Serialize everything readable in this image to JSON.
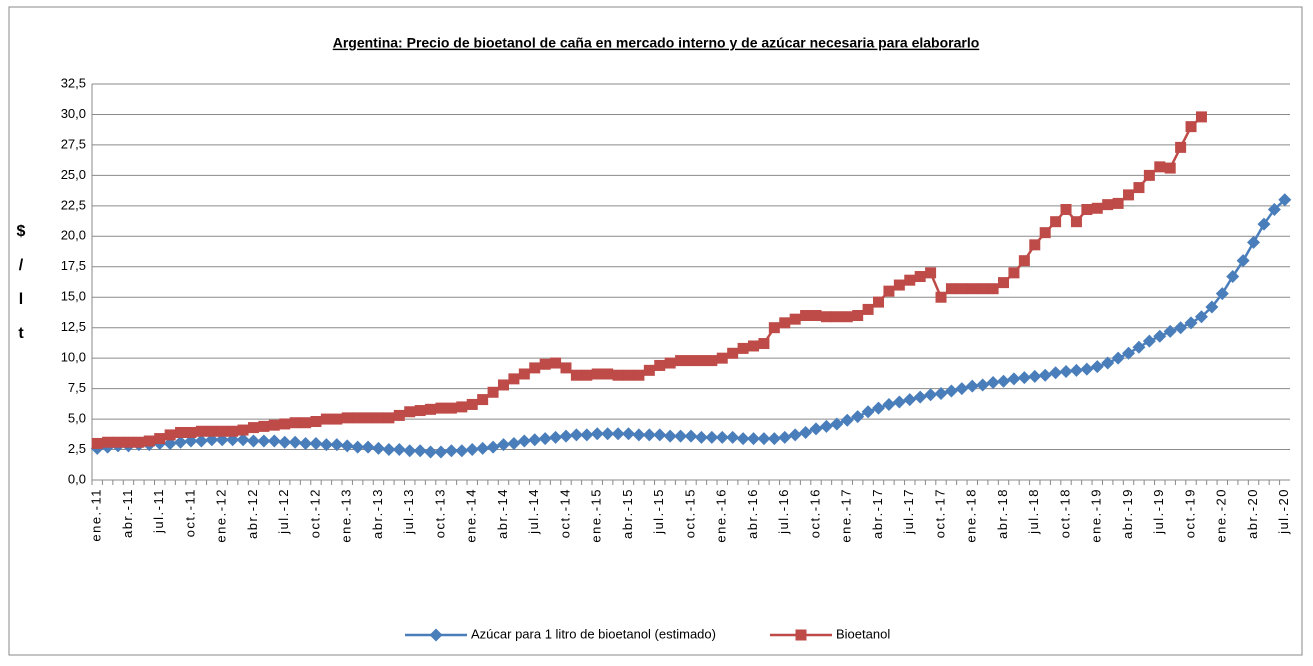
{
  "chart_data": {
    "type": "line",
    "title": "Argentina: Precio de bioetanol de caña en mercado interno y de azúcar necesaria para elaborarlo",
    "y_label": "$ / l t",
    "categories": [
      "ene.-11",
      null,
      null,
      "abr.-11",
      null,
      null,
      "jul.-11",
      null,
      null,
      "oct.-11",
      null,
      null,
      "ene.-12",
      null,
      null,
      "abr.-12",
      null,
      null,
      "jul.-12",
      null,
      null,
      "oct.-12",
      null,
      null,
      "ene.-13",
      null,
      null,
      "abr.-13",
      null,
      null,
      "jul.-13",
      null,
      null,
      "oct.-13",
      null,
      null,
      "ene.-14",
      null,
      null,
      "abr.-14",
      null,
      null,
      "jul.-14",
      null,
      null,
      "oct.-14",
      null,
      null,
      "ene.-15",
      null,
      null,
      "abr.-15",
      null,
      null,
      "jul.-15",
      null,
      null,
      "oct.-15",
      null,
      null,
      "ene.-16",
      null,
      null,
      "abr.-16",
      null,
      null,
      "jul.-16",
      null,
      null,
      "oct.-16",
      null,
      null,
      "ene.-17",
      null,
      null,
      "abr.-17",
      null,
      null,
      "jul.-17",
      null,
      null,
      "oct.-17",
      null,
      null,
      "ene.-18",
      null,
      null,
      "abr.-18",
      null,
      null,
      "jul.-18",
      null,
      null,
      "oct.-18",
      null,
      null,
      "ene.-19",
      null,
      null,
      "abr.-19",
      null,
      null,
      "jul.-19",
      null,
      null,
      "oct.-19",
      null,
      null,
      "ene.-20",
      null,
      null,
      "abr.-20",
      null,
      null,
      "jul.-20"
    ],
    "series": [
      {
        "name": "Azúcar para 1 litro de bioetanol (estimado)",
        "color": "#4a7ebb",
        "marker": "diamond",
        "values": [
          2.6,
          2.7,
          2.8,
          2.8,
          2.9,
          2.9,
          3.0,
          3.0,
          3.1,
          3.2,
          3.2,
          3.3,
          3.3,
          3.3,
          3.3,
          3.2,
          3.2,
          3.2,
          3.1,
          3.1,
          3.0,
          3.0,
          2.9,
          2.9,
          2.8,
          2.7,
          2.7,
          2.6,
          2.5,
          2.5,
          2.4,
          2.4,
          2.3,
          2.3,
          2.4,
          2.4,
          2.5,
          2.6,
          2.7,
          2.9,
          3.0,
          3.2,
          3.3,
          3.4,
          3.5,
          3.6,
          3.7,
          3.7,
          3.8,
          3.8,
          3.8,
          3.8,
          3.7,
          3.7,
          3.7,
          3.6,
          3.6,
          3.6,
          3.5,
          3.5,
          3.5,
          3.5,
          3.4,
          3.4,
          3.4,
          3.4,
          3.5,
          3.7,
          3.9,
          4.2,
          4.4,
          4.6,
          4.9,
          5.2,
          5.6,
          5.9,
          6.2,
          6.4,
          6.6,
          6.8,
          7.0,
          7.1,
          7.3,
          7.5,
          7.7,
          7.8,
          8.0,
          8.1,
          8.3,
          8.4,
          8.5,
          8.6,
          8.8,
          8.9,
          9.0,
          9.1,
          9.3,
          9.6,
          10.0,
          10.4,
          10.9,
          11.4,
          11.8,
          12.2,
          12.5,
          12.9,
          13.4,
          14.2,
          15.3,
          16.7,
          18.0,
          19.5,
          21.0,
          22.2,
          23.0
        ]
      },
      {
        "name": "Bioetanol",
        "color": "#be4b48",
        "marker": "square",
        "values": [
          3.0,
          3.1,
          3.1,
          3.1,
          3.1,
          3.2,
          3.4,
          3.7,
          3.9,
          3.9,
          4.0,
          4.0,
          4.0,
          4.0,
          4.1,
          4.3,
          4.4,
          4.5,
          4.6,
          4.7,
          4.7,
          4.8,
          5.0,
          5.0,
          5.1,
          5.1,
          5.1,
          5.1,
          5.1,
          5.3,
          5.6,
          5.7,
          5.8,
          5.9,
          5.9,
          6.0,
          6.2,
          6.6,
          7.2,
          7.8,
          8.3,
          8.7,
          9.2,
          9.5,
          9.6,
          9.2,
          8.6,
          8.6,
          8.7,
          8.7,
          8.6,
          8.6,
          8.6,
          9.0,
          9.4,
          9.6,
          9.8,
          9.8,
          9.8,
          9.8,
          10.0,
          10.4,
          10.8,
          11.0,
          11.2,
          12.5,
          12.9,
          13.2,
          13.5,
          13.5,
          13.4,
          13.4,
          13.4,
          13.5,
          14.0,
          14.6,
          15.5,
          16.0,
          16.4,
          16.7,
          17.0,
          15.0,
          15.7,
          15.7,
          15.7,
          15.7,
          15.7,
          16.2,
          17.0,
          18.0,
          19.3,
          20.3,
          21.2,
          22.2,
          21.2,
          22.2,
          22.3,
          22.6,
          22.7,
          23.4,
          24.0,
          25.0,
          25.7,
          25.6,
          27.3,
          29.0,
          29.8,
          null,
          null,
          null,
          null,
          null,
          null,
          null,
          null
        ]
      }
    ],
    "ylim": [
      0,
      32.5
    ],
    "yticks": [
      {
        "value": 0,
        "label": "0,0"
      },
      {
        "value": 2.5,
        "label": "2,5"
      },
      {
        "value": 5,
        "label": "5,0"
      },
      {
        "value": 7.5,
        "label": "7,5"
      },
      {
        "value": 10,
        "label": "10,0"
      },
      {
        "value": 12.5,
        "label": "12,5"
      },
      {
        "value": 15,
        "label": "15,0"
      },
      {
        "value": 17.5,
        "label": "17,5"
      },
      {
        "value": 20,
        "label": "20,0"
      },
      {
        "value": 22.5,
        "label": "22,5"
      },
      {
        "value": 25,
        "label": "25,0"
      },
      {
        "value": 27.5,
        "label": "27,5"
      },
      {
        "value": 30,
        "label": "30,0"
      },
      {
        "value": 32.5,
        "label": "32,5"
      }
    ],
    "grid": true,
    "legend": "bottom"
  }
}
